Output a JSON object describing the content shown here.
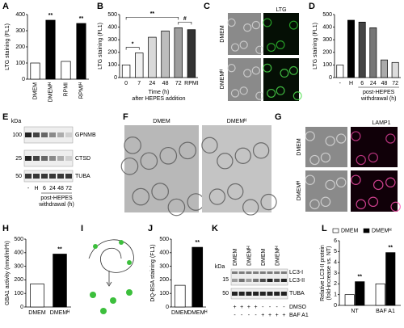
{
  "chart_data": [
    {
      "type": "bar",
      "panel": "A",
      "ylabel": [
        "LTG staining (FL1)"
      ],
      "categories": [
        "DMEM",
        "DMEMᴴ",
        "RPMI",
        "RPMIᴴ"
      ],
      "values": [
        100,
        365,
        110,
        345
      ],
      "colors": [
        "#ffffff",
        "#000000",
        "#ffffff",
        "#000000"
      ],
      "annotations": [
        null,
        "**",
        null,
        "**"
      ],
      "ylim": [
        0,
        400
      ],
      "yticks": [
        0,
        100,
        200,
        300,
        400
      ]
    },
    {
      "type": "bar",
      "panel": "B",
      "ylabel": [
        "LTG staining (FL1)"
      ],
      "xlabel": [
        "Time (h)",
        "after HEPES addition"
      ],
      "categories": [
        "0",
        "7",
        "24",
        "48",
        "72",
        "RPMI"
      ],
      "values": [
        100,
        195,
        320,
        370,
        395,
        380
      ],
      "colors": [
        "#ffffff",
        "#f0f0f0",
        "#d9d9d9",
        "#bdbdbd",
        "#9e9e9e",
        "#333333"
      ],
      "brackets": [
        {
          "text": "*",
          "from": "0",
          "to": "7"
        },
        {
          "text": "**",
          "from": "0",
          "to": "72"
        },
        {
          "text": "#",
          "from": "72",
          "to": "RPMI"
        }
      ],
      "ylim": [
        0,
        500
      ],
      "yticks": [
        0,
        100,
        200,
        300,
        400,
        500
      ]
    },
    {
      "type": "bar",
      "panel": "D",
      "ylabel": [
        "LTG staining (FL1)"
      ],
      "xlabel": [
        "post-HEPES",
        "withdrawal (h)"
      ],
      "categories": [
        "-",
        "H",
        "6",
        "24",
        "48",
        "72"
      ],
      "values": [
        100,
        455,
        440,
        395,
        140,
        120
      ],
      "colors": [
        "#ffffff",
        "#000000",
        "#444444",
        "#777777",
        "#aaaaaa",
        "#dddddd"
      ],
      "ylim": [
        0,
        500
      ],
      "yticks": [
        0,
        100,
        200,
        300,
        400,
        500
      ]
    },
    {
      "type": "bar",
      "panel": "H",
      "ylabel": [
        "GBA1 activity (nmol/ml*h)"
      ],
      "categories": [
        "DMEM",
        "DMEMᴴ"
      ],
      "values": [
        170,
        390
      ],
      "colors": [
        "#ffffff",
        "#000000"
      ],
      "annotations": [
        null,
        "**"
      ],
      "ylim": [
        0,
        500
      ],
      "yticks": [
        0,
        100,
        200,
        300,
        400,
        500
      ]
    },
    {
      "type": "bar",
      "panel": "J",
      "ylabel": [
        "DQ-BSA staining (FL1)"
      ],
      "categories": [
        "DMEM",
        "DMEMᴴ"
      ],
      "values": [
        160,
        440
      ],
      "colors": [
        "#ffffff",
        "#000000"
      ],
      "annotations": [
        null,
        "**"
      ],
      "ylim": [
        0,
        500
      ],
      "yticks": [
        0,
        100,
        200,
        300,
        400,
        500
      ]
    },
    {
      "type": "grouped-bar",
      "panel": "L",
      "ylabel": [
        "Relative LC3-II protein",
        "(fold-increase vs. NT)"
      ],
      "categories": [
        "NT",
        "BAF A1"
      ],
      "series": [
        {
          "name": "DMEM",
          "color": "#ffffff",
          "values": [
            1.0,
            2.0
          ],
          "annotations": [
            null,
            null
          ]
        },
        {
          "name": "DMEMᴴ",
          "color": "#000000",
          "values": [
            2.2,
            4.9
          ],
          "annotations": [
            "**",
            "**"
          ]
        }
      ],
      "ylim": [
        0,
        6
      ],
      "yticks": [
        0,
        1,
        2,
        3,
        4,
        5,
        6
      ]
    }
  ],
  "figure": {
    "C": {
      "label": "C",
      "stain": "LTG",
      "rows": [
        "DMEM",
        "DMEMᴴ"
      ]
    },
    "E": {
      "label": "E",
      "unit": "kDa",
      "markers": [
        "100",
        "25",
        "50"
      ],
      "bands": [
        "GPNMB",
        "CTSD",
        "TUBA"
      ],
      "lanes": [
        "-",
        "H",
        "6",
        "24",
        "48",
        "72"
      ],
      "xlabel": [
        "post-HEPES",
        "withdrawal (h)"
      ]
    },
    "F": {
      "label": "F",
      "columns": [
        "DMEM",
        "DMEMᴴ"
      ]
    },
    "G": {
      "label": "G",
      "stain": "LAMP1",
      "rows": [
        "DMEM",
        "DMEMᴴ"
      ]
    },
    "I": {
      "label": "I"
    },
    "K": {
      "label": "K",
      "unit": "kDa",
      "lanes": [
        "DMEM",
        "DMEMᴴ",
        "DMEM",
        "DMEMᴴ"
      ],
      "markers": [
        "15",
        "50"
      ],
      "bands": [
        "LC3-I",
        "LC3-II",
        "TUBA"
      ],
      "treatments": [
        {
          "name": "DMSO",
          "signs": [
            "+",
            "+",
            "+",
            "+",
            "-",
            "-",
            "-",
            "-"
          ]
        },
        {
          "name": "BAF A1",
          "signs": [
            "-",
            "-",
            "-",
            "-",
            "+",
            "+",
            "+",
            "+"
          ]
        }
      ]
    }
  }
}
